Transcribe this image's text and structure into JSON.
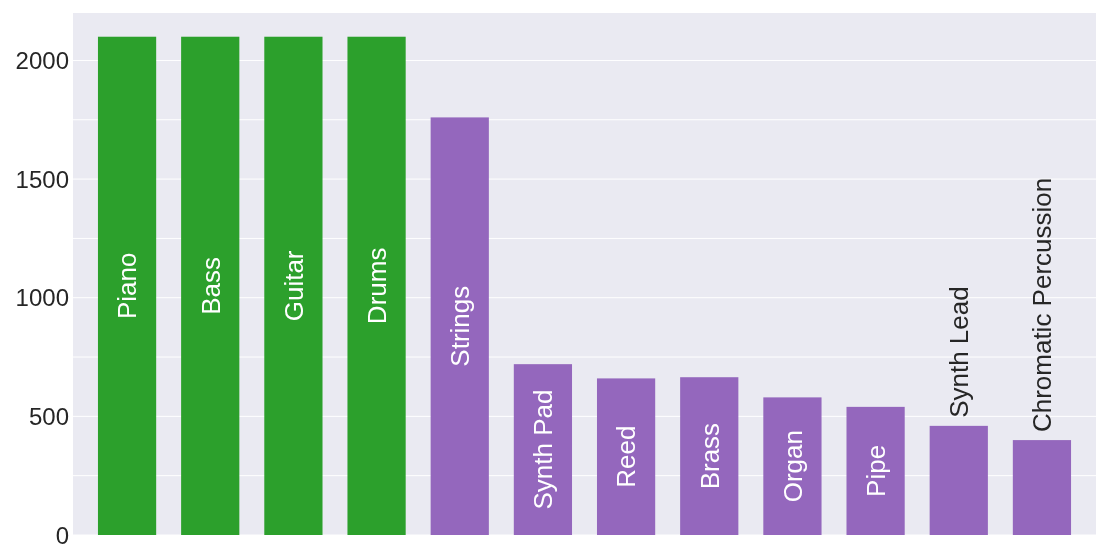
{
  "chart_data": {
    "type": "bar",
    "categories": [
      "Piano",
      "Bass",
      "Guitar",
      "Drums",
      "Strings",
      "Synth Pad",
      "Reed",
      "Brass",
      "Organ",
      "Pipe",
      "Synth Lead",
      "Chromatic Percussion"
    ],
    "values": [
      2100,
      2100,
      2100,
      2100,
      1760,
      720,
      660,
      665,
      580,
      540,
      460,
      400
    ],
    "colors": [
      "#2ca02c",
      "#2ca02c",
      "#2ca02c",
      "#2ca02c",
      "#9467bd",
      "#9467bd",
      "#9467bd",
      "#9467bd",
      "#9467bd",
      "#9467bd",
      "#9467bd",
      "#9467bd"
    ],
    "ylim": [
      0,
      2200
    ],
    "yticks": [
      0,
      {
        "value": 250,
        "label": null
      },
      500,
      {
        "value": 750,
        "label": null
      },
      1000,
      {
        "value": 1250,
        "label": null
      },
      1500,
      {
        "value": 1750,
        "label": null
      },
      2000
    ],
    "grid": "y",
    "tick_labels": "y"
  }
}
